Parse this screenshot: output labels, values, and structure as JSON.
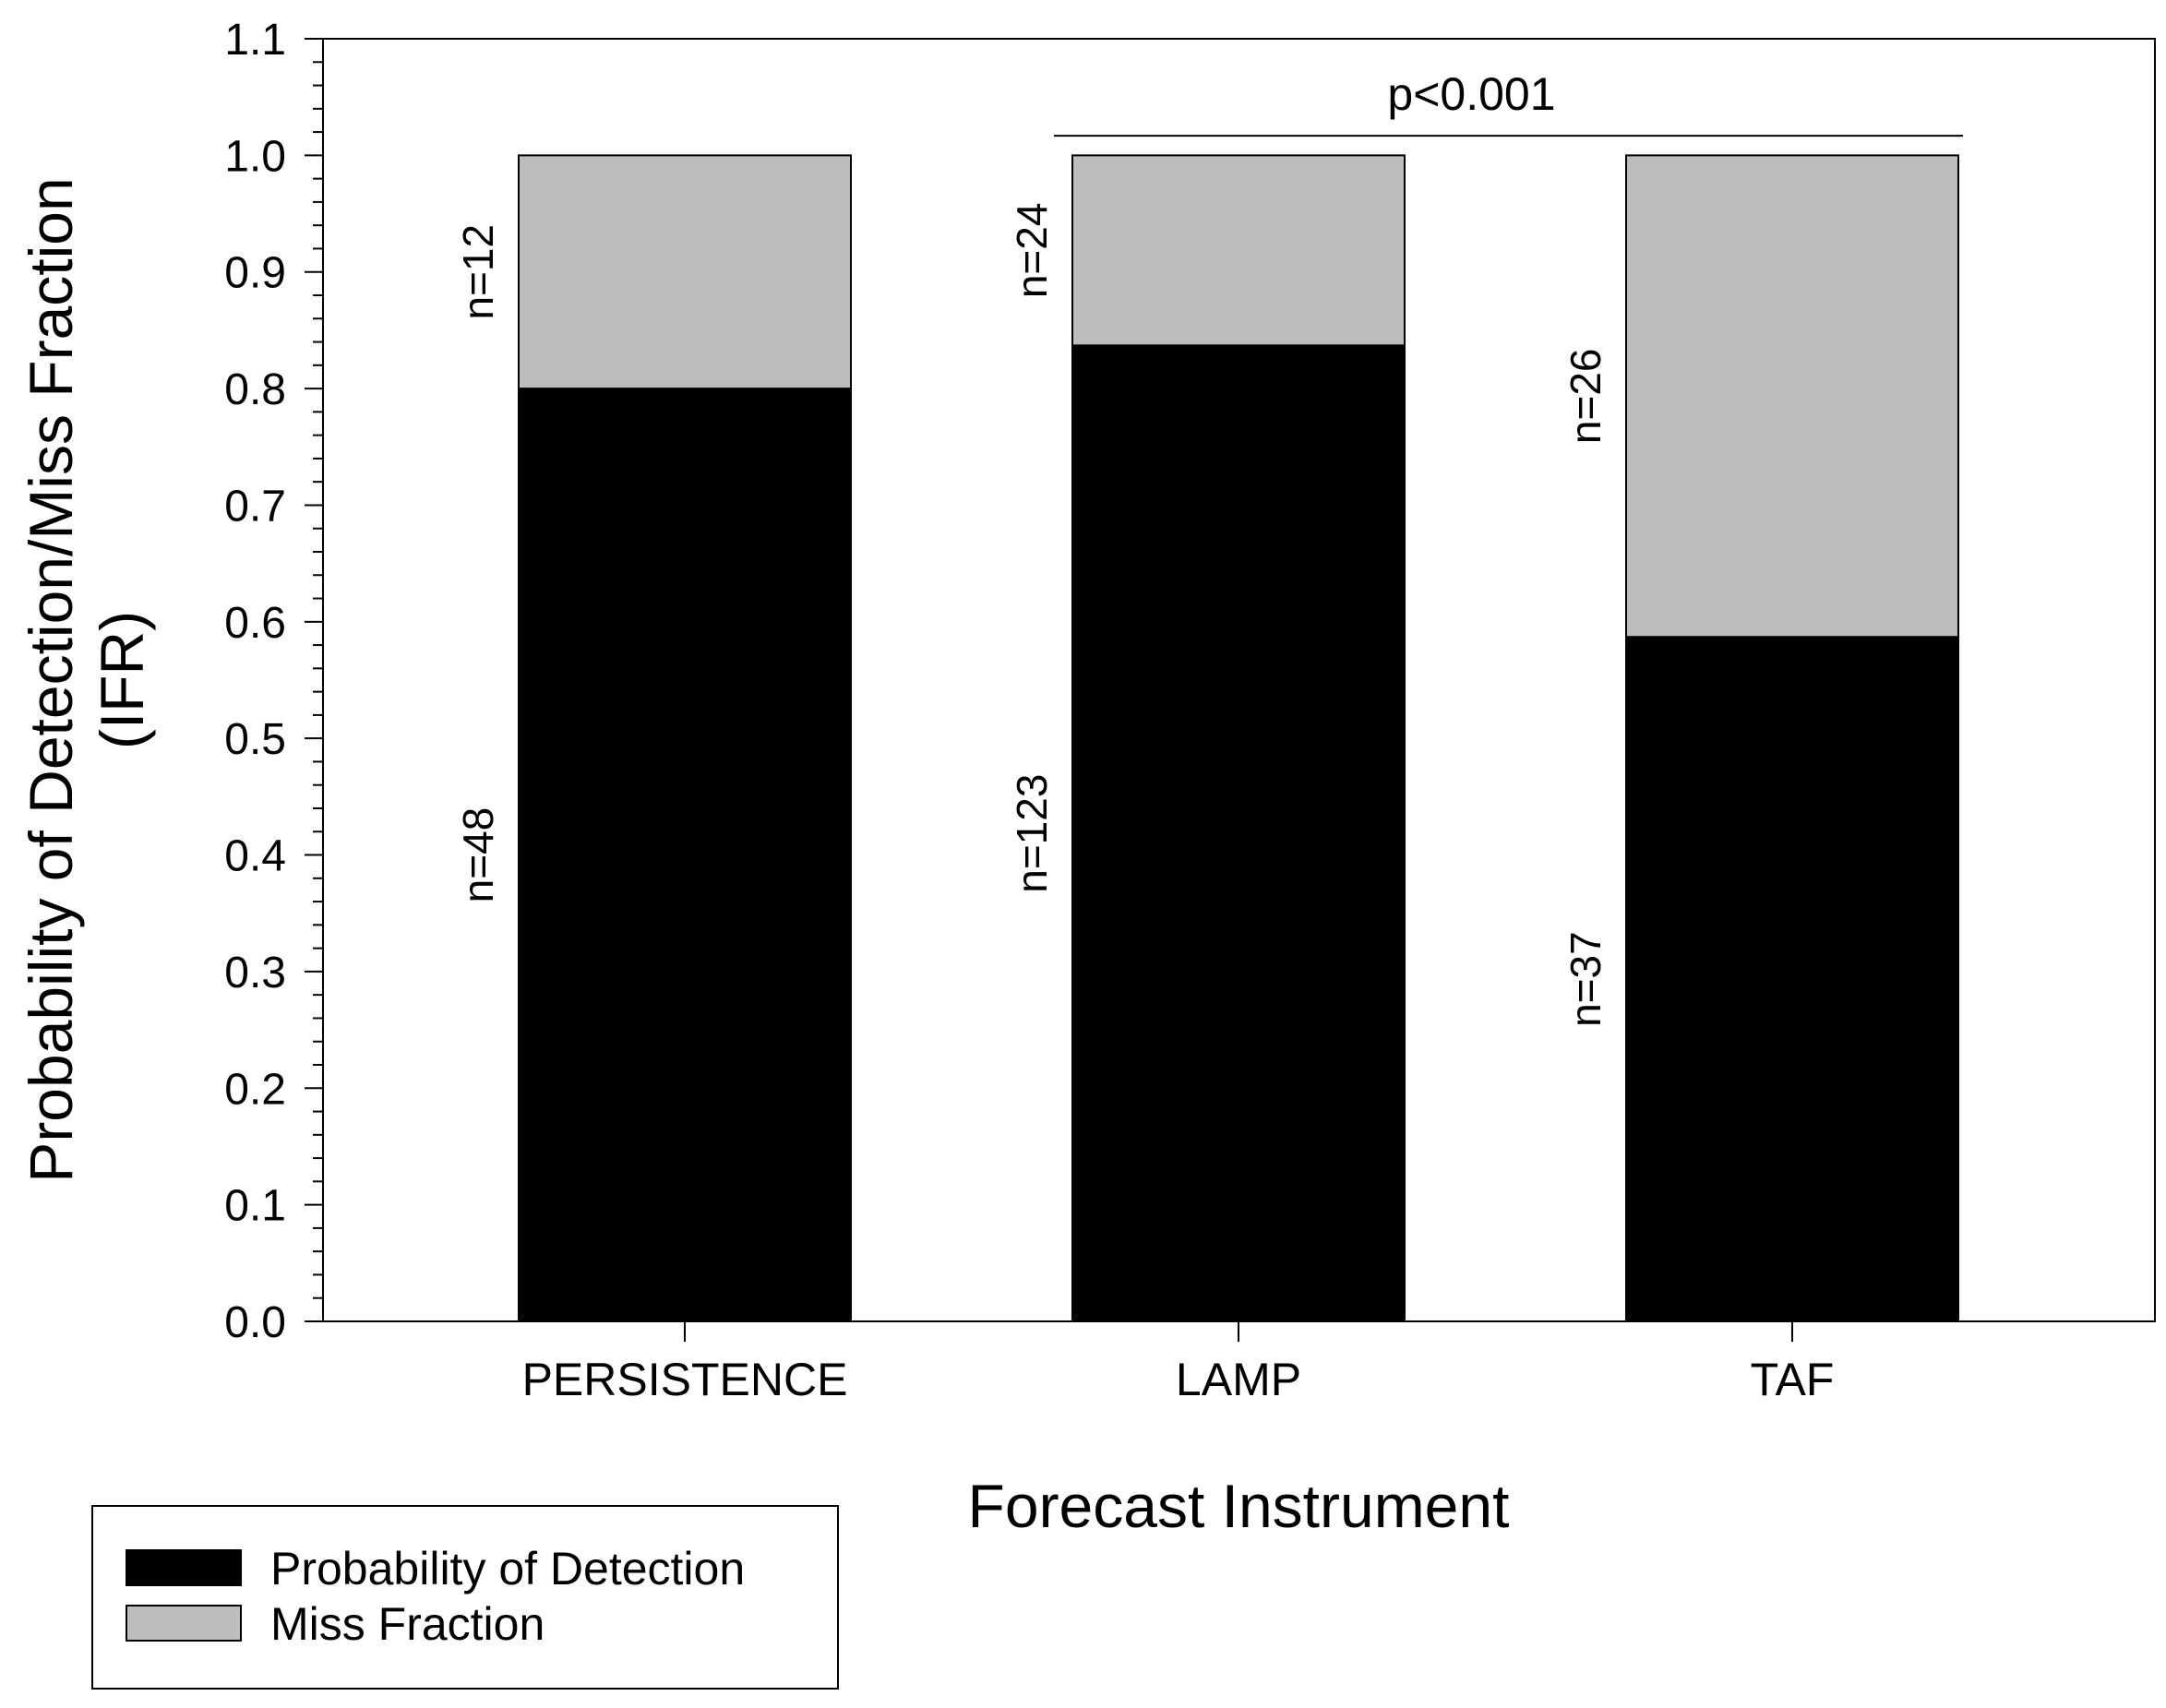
{
  "chart_data": {
    "type": "bar",
    "stacked": true,
    "ylabel_line1": "Probability of Detection/Miss Fraction",
    "ylabel_line2": "(IFR)",
    "xlabel": "Forecast Instrument",
    "ylim": [
      0,
      1.1
    ],
    "yticks": [
      "0.0",
      "0.1",
      "0.2",
      "0.3",
      "0.4",
      "0.5",
      "0.6",
      "0.7",
      "0.8",
      "0.9",
      "1.0",
      "1.1"
    ],
    "categories": [
      "PERSISTENCE",
      "LAMP",
      "TAF"
    ],
    "series": [
      {
        "name": "Probability of Detection",
        "color": "#000000",
        "values": [
          0.8,
          0.837,
          0.587
        ],
        "n_labels": [
          "n=48",
          "n=123",
          "n=37"
        ]
      },
      {
        "name": "Miss Fraction",
        "color": "#bdbdbd",
        "values": [
          0.2,
          0.163,
          0.413
        ],
        "n_labels": [
          "n=12",
          "n=24",
          "n=26"
        ]
      }
    ],
    "annotation": {
      "text": "p<0.001",
      "from_category": "LAMP",
      "to_category": "TAF",
      "y": 1.02
    },
    "legend": {
      "position": "bottom-left",
      "entries": [
        {
          "label": "Probability of Detection",
          "color": "#000000"
        },
        {
          "label": "Miss Fraction",
          "color": "#bdbdbd"
        }
      ]
    }
  }
}
